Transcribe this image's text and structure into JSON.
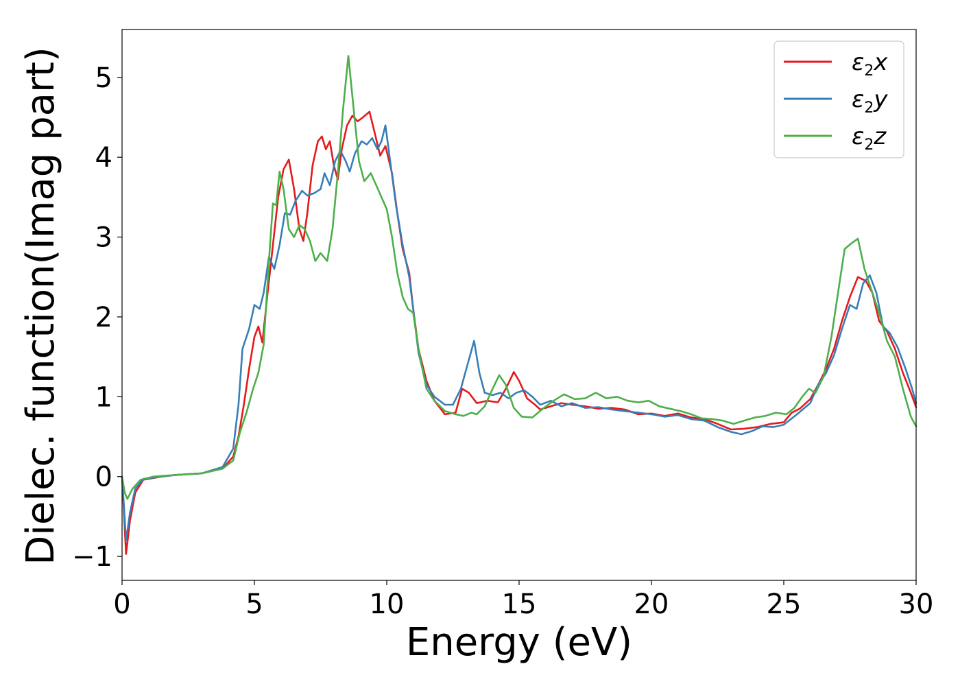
{
  "chart_data": {
    "type": "line",
    "title": "",
    "xlabel": "Energy (eV)",
    "ylabel": "Dielec. function(Imag part)",
    "xlim": [
      0,
      30
    ],
    "ylim": [
      -1.3,
      5.6
    ],
    "xticks": [
      0,
      5,
      10,
      15,
      20,
      25,
      30
    ],
    "xtick_labels": [
      "0",
      "5",
      "10",
      "15",
      "20",
      "25",
      "30"
    ],
    "yticks": [
      -1,
      0,
      1,
      2,
      3,
      4,
      5
    ],
    "ytick_labels": [
      "−1",
      "0",
      "1",
      "2",
      "3",
      "4",
      "5"
    ],
    "grid": false,
    "legend_position": "top-right",
    "series": [
      {
        "name": "ε₂x",
        "name_parts": {
          "symbol": "ε",
          "sub": "2",
          "suffix": "x"
        },
        "color": "#e41a1c",
        "points": [
          [
            0,
            0.0
          ],
          [
            0.05,
            -0.3
          ],
          [
            0.15,
            -0.97
          ],
          [
            0.3,
            -0.55
          ],
          [
            0.5,
            -0.2
          ],
          [
            0.8,
            -0.04
          ],
          [
            1.5,
            0.0
          ],
          [
            2,
            0.02
          ],
          [
            3,
            0.04
          ],
          [
            3.8,
            0.1
          ],
          [
            4.2,
            0.25
          ],
          [
            4.4,
            0.5
          ],
          [
            4.6,
            0.9
          ],
          [
            4.8,
            1.35
          ],
          [
            5.0,
            1.75
          ],
          [
            5.15,
            1.88
          ],
          [
            5.3,
            1.68
          ],
          [
            5.5,
            2.3
          ],
          [
            5.7,
            2.9
          ],
          [
            5.9,
            3.5
          ],
          [
            6.1,
            3.85
          ],
          [
            6.3,
            3.97
          ],
          [
            6.5,
            3.6
          ],
          [
            6.7,
            3.1
          ],
          [
            6.85,
            2.95
          ],
          [
            7.0,
            3.3
          ],
          [
            7.2,
            3.9
          ],
          [
            7.4,
            4.2
          ],
          [
            7.55,
            4.26
          ],
          [
            7.7,
            4.1
          ],
          [
            7.85,
            4.2
          ],
          [
            8.0,
            3.9
          ],
          [
            8.15,
            3.72
          ],
          [
            8.3,
            4.1
          ],
          [
            8.5,
            4.4
          ],
          [
            8.7,
            4.52
          ],
          [
            8.9,
            4.45
          ],
          [
            9.1,
            4.5
          ],
          [
            9.35,
            4.57
          ],
          [
            9.55,
            4.3
          ],
          [
            9.75,
            4.02
          ],
          [
            9.95,
            4.14
          ],
          [
            10.2,
            3.8
          ],
          [
            10.4,
            3.3
          ],
          [
            10.6,
            2.85
          ],
          [
            10.85,
            2.55
          ],
          [
            11.0,
            2.1
          ],
          [
            11.2,
            1.6
          ],
          [
            11.5,
            1.2
          ],
          [
            11.8,
            0.95
          ],
          [
            12.2,
            0.78
          ],
          [
            12.6,
            0.8
          ],
          [
            12.85,
            1.1
          ],
          [
            13.1,
            1.05
          ],
          [
            13.4,
            0.92
          ],
          [
            13.8,
            0.95
          ],
          [
            14.2,
            0.93
          ],
          [
            14.5,
            1.1
          ],
          [
            14.8,
            1.31
          ],
          [
            15.0,
            1.2
          ],
          [
            15.3,
            0.98
          ],
          [
            15.6,
            0.9
          ],
          [
            15.8,
            0.84
          ],
          [
            16.2,
            0.88
          ],
          [
            16.6,
            0.92
          ],
          [
            17.0,
            0.9
          ],
          [
            17.5,
            0.88
          ],
          [
            18.0,
            0.85
          ],
          [
            18.5,
            0.86
          ],
          [
            19.0,
            0.84
          ],
          [
            19.5,
            0.78
          ],
          [
            20.0,
            0.79
          ],
          [
            20.5,
            0.76
          ],
          [
            21.0,
            0.79
          ],
          [
            21.5,
            0.74
          ],
          [
            22.0,
            0.72
          ],
          [
            22.5,
            0.66
          ],
          [
            23.0,
            0.59
          ],
          [
            23.5,
            0.6
          ],
          [
            24.0,
            0.62
          ],
          [
            24.5,
            0.66
          ],
          [
            25.0,
            0.68
          ],
          [
            25.3,
            0.8
          ],
          [
            25.6,
            0.85
          ],
          [
            26.0,
            0.97
          ],
          [
            26.3,
            1.15
          ],
          [
            26.6,
            1.35
          ],
          [
            26.9,
            1.6
          ],
          [
            27.2,
            1.95
          ],
          [
            27.5,
            2.25
          ],
          [
            27.8,
            2.5
          ],
          [
            28.1,
            2.45
          ],
          [
            28.35,
            2.3
          ],
          [
            28.6,
            1.95
          ],
          [
            28.9,
            1.82
          ],
          [
            29.2,
            1.6
          ],
          [
            29.5,
            1.3
          ],
          [
            29.8,
            1.05
          ],
          [
            30.0,
            0.87
          ]
        ]
      },
      {
        "name": "ε₂y",
        "name_parts": {
          "symbol": "ε",
          "sub": "2",
          "suffix": "y"
        },
        "color": "#377eb8",
        "points": [
          [
            0,
            0.0
          ],
          [
            0.05,
            -0.25
          ],
          [
            0.15,
            -0.8
          ],
          [
            0.3,
            -0.45
          ],
          [
            0.5,
            -0.15
          ],
          [
            0.8,
            -0.03
          ],
          [
            1.5,
            0.0
          ],
          [
            2,
            0.02
          ],
          [
            3,
            0.04
          ],
          [
            3.8,
            0.12
          ],
          [
            4.2,
            0.35
          ],
          [
            4.4,
            0.9
          ],
          [
            4.55,
            1.6
          ],
          [
            4.8,
            1.85
          ],
          [
            5.0,
            2.15
          ],
          [
            5.2,
            2.1
          ],
          [
            5.35,
            2.3
          ],
          [
            5.55,
            2.75
          ],
          [
            5.75,
            2.6
          ],
          [
            5.95,
            2.9
          ],
          [
            6.15,
            3.3
          ],
          [
            6.35,
            3.28
          ],
          [
            6.55,
            3.45
          ],
          [
            6.8,
            3.58
          ],
          [
            7.0,
            3.52
          ],
          [
            7.25,
            3.55
          ],
          [
            7.5,
            3.6
          ],
          [
            7.65,
            3.8
          ],
          [
            7.85,
            3.65
          ],
          [
            8.05,
            3.95
          ],
          [
            8.25,
            4.08
          ],
          [
            8.45,
            3.95
          ],
          [
            8.6,
            3.82
          ],
          [
            8.8,
            4.05
          ],
          [
            9.05,
            4.2
          ],
          [
            9.25,
            4.16
          ],
          [
            9.45,
            4.24
          ],
          [
            9.65,
            4.1
          ],
          [
            9.8,
            4.2
          ],
          [
            9.95,
            4.4
          ],
          [
            10.15,
            3.9
          ],
          [
            10.35,
            3.4
          ],
          [
            10.6,
            2.9
          ],
          [
            10.85,
            2.5
          ],
          [
            11.0,
            2.1
          ],
          [
            11.2,
            1.55
          ],
          [
            11.5,
            1.15
          ],
          [
            11.8,
            1.0
          ],
          [
            12.2,
            0.9
          ],
          [
            12.5,
            0.9
          ],
          [
            12.8,
            1.1
          ],
          [
            13.05,
            1.4
          ],
          [
            13.3,
            1.7
          ],
          [
            13.5,
            1.3
          ],
          [
            13.7,
            1.05
          ],
          [
            14.0,
            1.02
          ],
          [
            14.3,
            1.05
          ],
          [
            14.6,
            0.98
          ],
          [
            14.9,
            1.05
          ],
          [
            15.2,
            1.08
          ],
          [
            15.5,
            1.0
          ],
          [
            15.8,
            0.9
          ],
          [
            16.2,
            0.95
          ],
          [
            16.6,
            0.88
          ],
          [
            17.0,
            0.92
          ],
          [
            17.5,
            0.86
          ],
          [
            18.0,
            0.87
          ],
          [
            18.5,
            0.84
          ],
          [
            19.0,
            0.82
          ],
          [
            19.5,
            0.8
          ],
          [
            20.0,
            0.78
          ],
          [
            20.5,
            0.75
          ],
          [
            21.0,
            0.77
          ],
          [
            21.5,
            0.72
          ],
          [
            22.0,
            0.7
          ],
          [
            22.5,
            0.62
          ],
          [
            23.0,
            0.56
          ],
          [
            23.4,
            0.53
          ],
          [
            23.8,
            0.57
          ],
          [
            24.2,
            0.63
          ],
          [
            24.6,
            0.62
          ],
          [
            25.0,
            0.65
          ],
          [
            25.5,
            0.78
          ],
          [
            26.0,
            0.92
          ],
          [
            26.3,
            1.15
          ],
          [
            26.6,
            1.3
          ],
          [
            26.9,
            1.52
          ],
          [
            27.2,
            1.85
          ],
          [
            27.5,
            2.15
          ],
          [
            27.75,
            2.1
          ],
          [
            28.0,
            2.42
          ],
          [
            28.25,
            2.52
          ],
          [
            28.5,
            2.3
          ],
          [
            28.75,
            1.88
          ],
          [
            29.0,
            1.8
          ],
          [
            29.3,
            1.62
          ],
          [
            29.6,
            1.35
          ],
          [
            29.85,
            1.1
          ],
          [
            30.0,
            0.92
          ]
        ]
      },
      {
        "name": "ε₂z",
        "name_parts": {
          "symbol": "ε",
          "sub": "2",
          "suffix": "z"
        },
        "color": "#4daf4a",
        "points": [
          [
            0,
            0.0
          ],
          [
            0.1,
            -0.2
          ],
          [
            0.2,
            -0.28
          ],
          [
            0.4,
            -0.15
          ],
          [
            0.7,
            -0.04
          ],
          [
            1.2,
            0.0
          ],
          [
            2,
            0.02
          ],
          [
            3,
            0.04
          ],
          [
            3.8,
            0.1
          ],
          [
            4.2,
            0.2
          ],
          [
            4.45,
            0.55
          ],
          [
            4.7,
            0.8
          ],
          [
            4.95,
            1.1
          ],
          [
            5.15,
            1.3
          ],
          [
            5.35,
            1.65
          ],
          [
            5.55,
            2.7
          ],
          [
            5.7,
            3.42
          ],
          [
            5.82,
            3.4
          ],
          [
            5.95,
            3.82
          ],
          [
            6.1,
            3.6
          ],
          [
            6.3,
            3.1
          ],
          [
            6.5,
            3.0
          ],
          [
            6.7,
            3.15
          ],
          [
            6.9,
            3.1
          ],
          [
            7.1,
            2.95
          ],
          [
            7.3,
            2.7
          ],
          [
            7.5,
            2.8
          ],
          [
            7.75,
            2.7
          ],
          [
            7.95,
            3.1
          ],
          [
            8.15,
            3.8
          ],
          [
            8.35,
            4.6
          ],
          [
            8.55,
            5.27
          ],
          [
            8.75,
            4.6
          ],
          [
            8.95,
            3.95
          ],
          [
            9.15,
            3.7
          ],
          [
            9.4,
            3.8
          ],
          [
            9.6,
            3.65
          ],
          [
            9.8,
            3.5
          ],
          [
            10.0,
            3.35
          ],
          [
            10.2,
            3.0
          ],
          [
            10.4,
            2.55
          ],
          [
            10.6,
            2.25
          ],
          [
            10.8,
            2.1
          ],
          [
            11.0,
            2.05
          ],
          [
            11.2,
            1.6
          ],
          [
            11.5,
            1.1
          ],
          [
            11.8,
            0.95
          ],
          [
            12.2,
            0.82
          ],
          [
            12.6,
            0.78
          ],
          [
            12.9,
            0.76
          ],
          [
            13.2,
            0.8
          ],
          [
            13.4,
            0.78
          ],
          [
            13.7,
            0.88
          ],
          [
            14.0,
            1.1
          ],
          [
            14.25,
            1.27
          ],
          [
            14.5,
            1.15
          ],
          [
            14.8,
            0.86
          ],
          [
            15.1,
            0.75
          ],
          [
            15.5,
            0.74
          ],
          [
            15.9,
            0.85
          ],
          [
            16.3,
            0.95
          ],
          [
            16.7,
            1.03
          ],
          [
            17.1,
            0.97
          ],
          [
            17.5,
            0.98
          ],
          [
            17.9,
            1.05
          ],
          [
            18.3,
            0.98
          ],
          [
            18.7,
            1.0
          ],
          [
            19.1,
            0.95
          ],
          [
            19.5,
            0.93
          ],
          [
            19.9,
            0.95
          ],
          [
            20.3,
            0.88
          ],
          [
            20.7,
            0.85
          ],
          [
            21.1,
            0.82
          ],
          [
            21.5,
            0.78
          ],
          [
            21.9,
            0.73
          ],
          [
            22.3,
            0.72
          ],
          [
            22.7,
            0.7
          ],
          [
            23.1,
            0.66
          ],
          [
            23.5,
            0.7
          ],
          [
            23.9,
            0.74
          ],
          [
            24.3,
            0.76
          ],
          [
            24.7,
            0.8
          ],
          [
            25.1,
            0.78
          ],
          [
            25.4,
            0.86
          ],
          [
            25.7,
            1.0
          ],
          [
            25.95,
            1.1
          ],
          [
            26.2,
            1.05
          ],
          [
            26.5,
            1.25
          ],
          [
            26.8,
            1.75
          ],
          [
            27.05,
            2.3
          ],
          [
            27.3,
            2.85
          ],
          [
            27.55,
            2.92
          ],
          [
            27.8,
            2.98
          ],
          [
            28.05,
            2.6
          ],
          [
            28.3,
            2.35
          ],
          [
            28.6,
            2.05
          ],
          [
            28.9,
            1.7
          ],
          [
            29.2,
            1.5
          ],
          [
            29.5,
            1.1
          ],
          [
            29.8,
            0.75
          ],
          [
            30.0,
            0.63
          ]
        ]
      }
    ]
  }
}
